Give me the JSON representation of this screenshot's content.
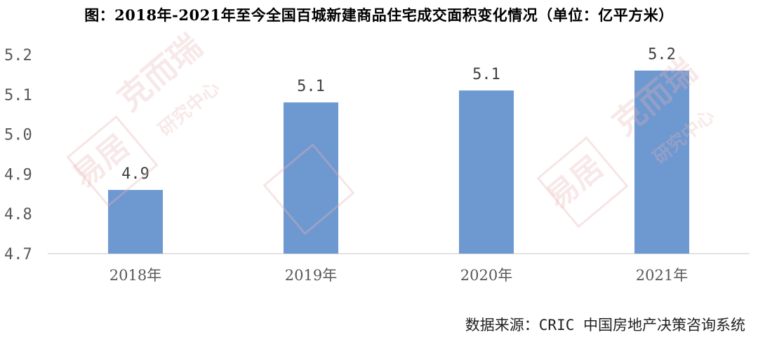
{
  "title": "图：2018年-2021年至今全国百城新建商品住宅成交面积变化情况（单位：亿平方米）",
  "source": "数据来源：CRIC 中国房地产决策咨询系统",
  "watermark": {
    "logo_text": "易居",
    "brand_text": "克而瑞",
    "sub_text": "研究中心",
    "color": "#e8b4b4"
  },
  "colors": {
    "bar": "#6e98d0",
    "axis": "#d9d9d9"
  },
  "chart_data": {
    "type": "bar",
    "title": "图：2018年-2021年至今全国百城新建商品住宅成交面积变化情况（单位：亿平方米）",
    "xlabel": "",
    "ylabel": "",
    "categories": [
      "2018年",
      "2019年",
      "2020年",
      "2021年"
    ],
    "values": [
      4.86,
      5.08,
      5.11,
      5.16
    ],
    "data_labels": [
      "4.9",
      "5.1",
      "5.1",
      "5.2"
    ],
    "ylim": [
      4.7,
      5.2
    ],
    "yticks": [
      "4.7",
      "4.8",
      "4.9",
      "5.0",
      "5.1",
      "5.2"
    ],
    "grid": false,
    "legend": "none"
  }
}
